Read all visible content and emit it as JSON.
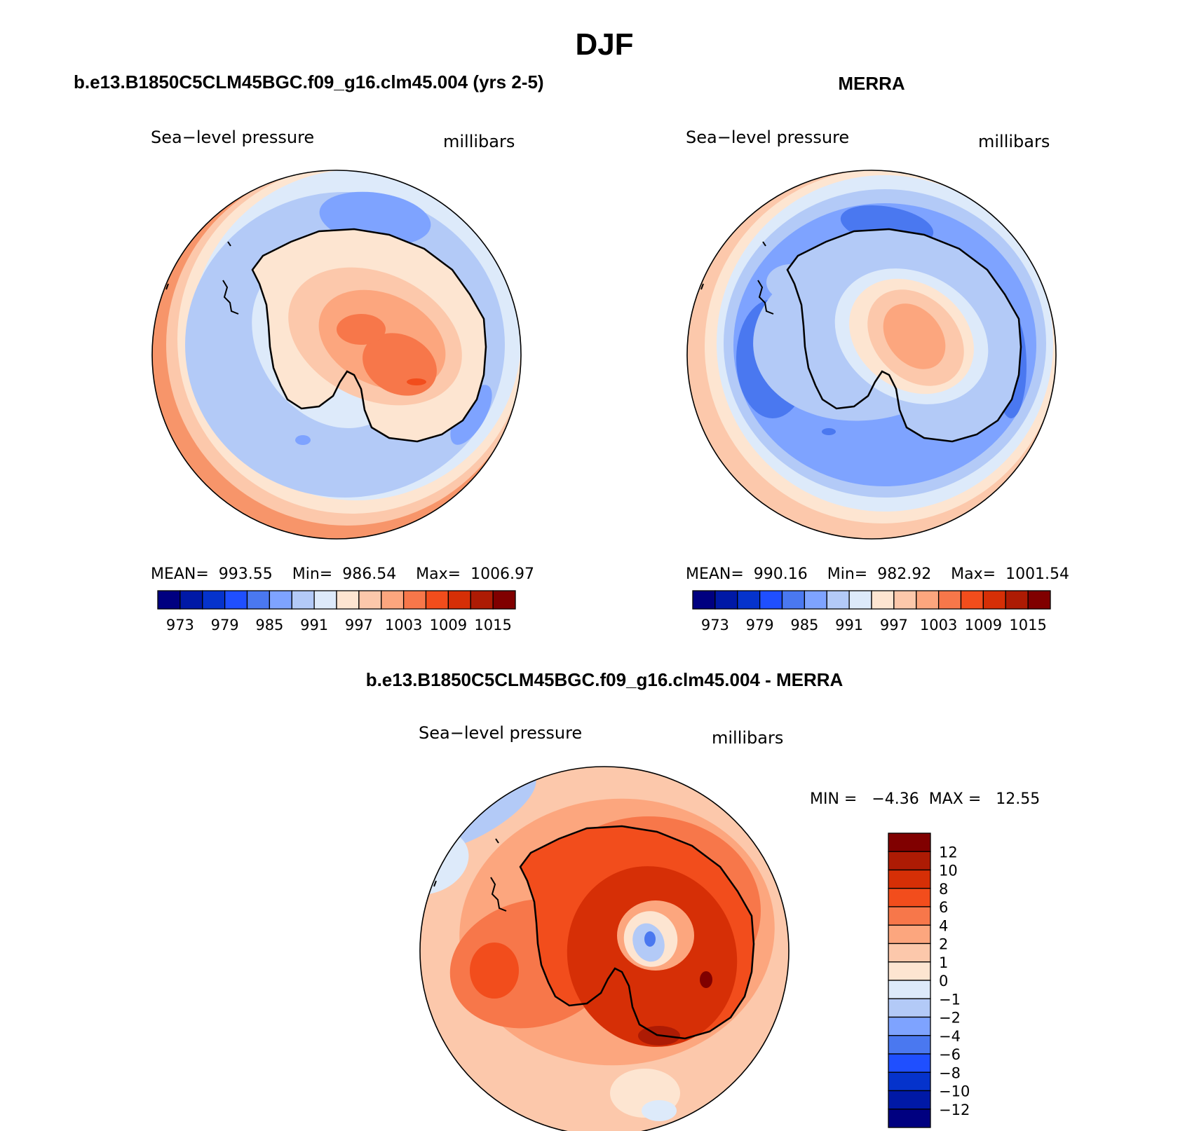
{
  "title": "DJF",
  "panels": [
    {
      "name": "model",
      "title": "b.e13.B1850C5CLM45BGC.f09_g16.clm45.004 (yrs 2-5)",
      "variable": "Sea−level pressure",
      "units": "millibars",
      "stats": "MEAN=  993.55    Min=  986.54    Max=  1006.97"
    },
    {
      "name": "merra",
      "title": "MERRA",
      "variable": "Sea−level pressure",
      "units": "millibars",
      "stats": "MEAN=  990.16    Min=  982.92    Max=  1001.54"
    }
  ],
  "abs_colorbar": {
    "colors": [
      "#000080",
      "#0019a6",
      "#0533cc",
      "#1f4fff",
      "#4a78f0",
      "#7ea3ff",
      "#b3caf7",
      "#ddeafa",
      "#fde5d1",
      "#fcc8ab",
      "#fca67e",
      "#f7774a",
      "#f24d1c",
      "#d62f06",
      "#ad1b04",
      "#800000"
    ],
    "labels": [
      "973",
      "979",
      "985",
      "991",
      "997",
      "1003",
      "1009",
      "1015"
    ]
  },
  "diff_panel": {
    "title": "b.e13.B1850C5CLM45BGC.f09_g16.clm45.004 - MERRA",
    "variable": "Sea−level pressure",
    "units": "millibars",
    "stats": "MIN =   −4.36  MAX =   12.55"
  },
  "diff_colorbar": {
    "colors": [
      "#800000",
      "#ad1b04",
      "#d62f06",
      "#f24d1c",
      "#f7774a",
      "#fca67e",
      "#fcc8ab",
      "#fde5d1",
      "#ddeafa",
      "#b3caf7",
      "#7ea3ff",
      "#4a78f0",
      "#1f4fff",
      "#0533cc",
      "#0019a6",
      "#000080"
    ],
    "labels": [
      "12",
      "10",
      "8",
      "6",
      "4",
      "2",
      "1",
      "0",
      "−1",
      "−2",
      "−4",
      "−6",
      "−8",
      "−10",
      "−12"
    ]
  }
}
